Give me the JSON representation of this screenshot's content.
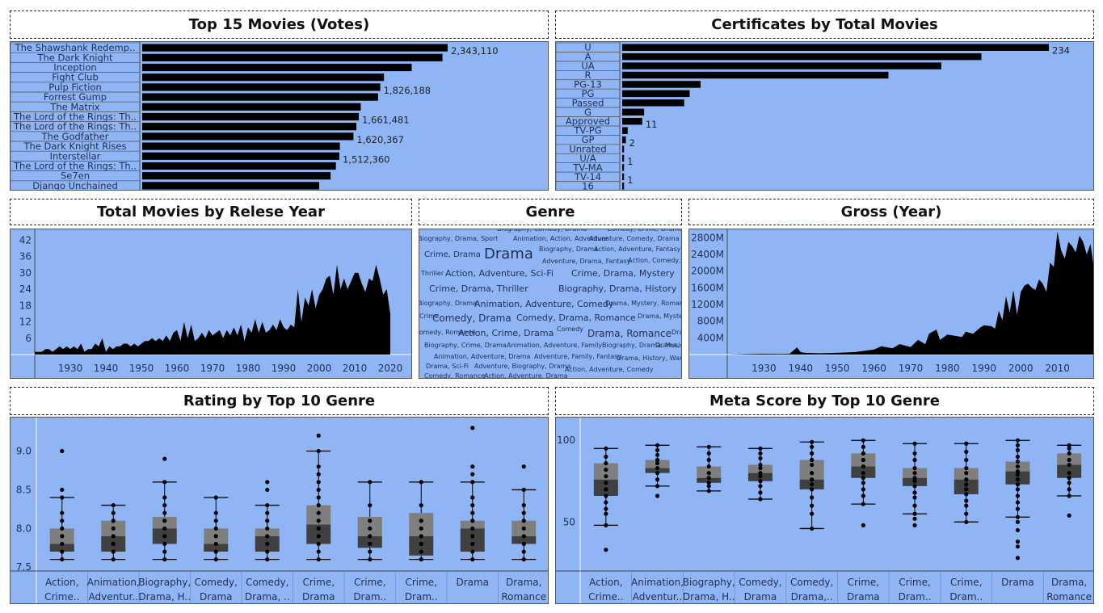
{
  "titles": {
    "top15": "Top 15 Movies (Votes)",
    "certs": "Certificates by Total Movies",
    "year": "Total Movies by Relese Year",
    "genre": "Genre",
    "gross": "Gross (Year)",
    "rating": "Rating by Top 10 Genre",
    "meta": "Meta Score by Top 10 Genre"
  },
  "chart_data": [
    {
      "id": "top15",
      "type": "bar",
      "orientation": "horizontal",
      "categories": [
        "The Shawshank Redemp..",
        "The Dark Knight",
        "Inception",
        "Fight Club",
        "Pulp Fiction",
        "Forrest Gump",
        "The Matrix",
        "The Lord of the Rings: Th..",
        "The Lord of the Rings: Th..",
        "The Godfather",
        "The Dark Knight Rises",
        "Interstellar",
        "The Lord of the Rings: Th..",
        "Se7en",
        "Django Unchained"
      ],
      "values": [
        2343110,
        2303232,
        2067042,
        1854740,
        1826188,
        1809221,
        1676426,
        1661481,
        1642758,
        1620367,
        1516346,
        1512360,
        1485555,
        1445096,
        1357682
      ],
      "data_labels": {
        "0": "2,343,110",
        "4": "1,826,188",
        "7": "1,661,481",
        "9": "1,620,367",
        "11": "1,512,360"
      }
    },
    {
      "id": "certs",
      "type": "bar",
      "orientation": "horizontal",
      "categories": [
        "U",
        "A",
        "UA",
        "R",
        "PG-13",
        "PG",
        "Passed",
        "G",
        "Approved",
        "TV-PG",
        "GP",
        "Unrated",
        "U/A",
        "TV-MA",
        "TV-14",
        "16"
      ],
      "values": [
        234,
        197,
        175,
        146,
        43,
        37,
        34,
        12,
        11,
        3,
        2,
        1,
        1,
        1,
        1,
        1
      ],
      "data_labels": {
        "0": "234",
        "8": "11",
        "10": "2",
        "12": "1",
        "14": "1"
      }
    },
    {
      "id": "year",
      "type": "area",
      "x": [
        1920,
        1921,
        1922,
        1923,
        1924,
        1925,
        1926,
        1927,
        1928,
        1929,
        1930,
        1931,
        1932,
        1933,
        1934,
        1935,
        1936,
        1937,
        1938,
        1939,
        1940,
        1941,
        1942,
        1943,
        1944,
        1945,
        1946,
        1947,
        1948,
        1949,
        1950,
        1951,
        1952,
        1953,
        1954,
        1955,
        1956,
        1957,
        1958,
        1959,
        1960,
        1961,
        1962,
        1963,
        1964,
        1965,
        1966,
        1967,
        1968,
        1969,
        1970,
        1971,
        1972,
        1973,
        1974,
        1975,
        1976,
        1977,
        1978,
        1979,
        1980,
        1981,
        1982,
        1983,
        1984,
        1985,
        1986,
        1987,
        1988,
        1989,
        1990,
        1991,
        1992,
        1993,
        1994,
        1995,
        1996,
        1997,
        1998,
        1999,
        2000,
        2001,
        2002,
        2003,
        2004,
        2005,
        2006,
        2007,
        2008,
        2009,
        2010,
        2011,
        2012,
        2013,
        2014,
        2015,
        2016,
        2017,
        2018,
        2019,
        2020
      ],
      "values": [
        1,
        1,
        1,
        2,
        2,
        1,
        2,
        3,
        2,
        3,
        2,
        3,
        2,
        4,
        1,
        2,
        2,
        4,
        3,
        6,
        1,
        3,
        2,
        3,
        3,
        4,
        4,
        3,
        4,
        3,
        4,
        5,
        5,
        6,
        5,
        6,
        5,
        7,
        5,
        8,
        9,
        5,
        12,
        6,
        11,
        5,
        6,
        8,
        6,
        9,
        7,
        8,
        9,
        6,
        9,
        7,
        10,
        7,
        11,
        5,
        10,
        8,
        13,
        8,
        12,
        8,
        9,
        11,
        9,
        13,
        10,
        9,
        11,
        10,
        24,
        12,
        21,
        18,
        24,
        17,
        22,
        24,
        28,
        29,
        22,
        33,
        24,
        28,
        24,
        27,
        30,
        30,
        26,
        23,
        28,
        27,
        33,
        28,
        22,
        24,
        15
      ],
      "xlim": [
        1920,
        2025
      ],
      "ylim": [
        0,
        46
      ],
      "yticks": [
        6,
        12,
        18,
        24,
        30,
        36,
        42
      ],
      "xticks": [
        1930,
        1940,
        1950,
        1960,
        1970,
        1980,
        1990,
        2000,
        2010,
        2020
      ]
    },
    {
      "id": "gross",
      "type": "area",
      "x": [
        1920,
        1925,
        1930,
        1935,
        1937,
        1939,
        1940,
        1941,
        1945,
        1950,
        1955,
        1960,
        1962,
        1965,
        1967,
        1970,
        1972,
        1974,
        1975,
        1977,
        1978,
        1980,
        1982,
        1984,
        1985,
        1987,
        1989,
        1990,
        1992,
        1993,
        1994,
        1995,
        1996,
        1997,
        1998,
        1999,
        2000,
        2001,
        2002,
        2003,
        2004,
        2005,
        2006,
        2007,
        2008,
        2009,
        2010,
        2011,
        2012,
        2013,
        2014,
        2015,
        2016,
        2017,
        2018,
        2019,
        2020
      ],
      "values": [
        0,
        10,
        20,
        15,
        20,
        170,
        60,
        40,
        30,
        40,
        60,
        120,
        200,
        150,
        250,
        180,
        350,
        250,
        500,
        600,
        350,
        480,
        450,
        420,
        550,
        500,
        650,
        700,
        680,
        620,
        1050,
        820,
        1400,
        1000,
        1550,
        950,
        1500,
        1650,
        1700,
        1600,
        1550,
        1800,
        1700,
        1500,
        2200,
        2100,
        2950,
        2500,
        2300,
        2700,
        2600,
        2450,
        2850,
        2700,
        2400,
        2650,
        2050
      ],
      "xlim": [
        1920,
        2020
      ],
      "ylim": [
        0,
        3000
      ],
      "yticks": [
        400,
        800,
        1200,
        1600,
        2000,
        2400,
        2800
      ],
      "ytick_labels": [
        "400M",
        "800M",
        "1200M",
        "1600M",
        "2000M",
        "2400M",
        "2800M"
      ],
      "xticks": [
        1930,
        1940,
        1950,
        1960,
        1970,
        1980,
        1990,
        2000,
        2010
      ]
    },
    {
      "id": "rating",
      "type": "box",
      "categories": [
        [
          "Action,",
          "Crime.."
        ],
        [
          "Animation,",
          "Adventur.."
        ],
        [
          "Biography,",
          "Drama, H.."
        ],
        [
          "Comedy,",
          "Drama"
        ],
        [
          "Comedy,",
          "Drama, .."
        ],
        [
          "Crime,",
          "Drama"
        ],
        [
          "Crime,",
          "Dram.."
        ],
        [
          "Crime,",
          "Dram.."
        ],
        [
          "Drama",
          ""
        ],
        [
          "Drama,",
          "Romance"
        ]
      ],
      "ylim": [
        7.45,
        9.35
      ],
      "yticks": [
        7.5,
        8.0,
        8.5,
        9.0
      ],
      "ytick_labels": [
        "7.5",
        "8.0",
        "8.5",
        "9.0"
      ],
      "boxes": [
        {
          "wmin": 7.6,
          "q1": 7.7,
          "med": 7.8,
          "q3": 8.0,
          "wmax": 8.4,
          "points": [
            7.6,
            7.7,
            7.8,
            7.9,
            8.0,
            8.1,
            8.2,
            8.4,
            8.5,
            9.0
          ]
        },
        {
          "wmin": 7.6,
          "q1": 7.7,
          "med": 7.9,
          "q3": 8.1,
          "wmax": 8.3,
          "points": [
            7.6,
            7.7,
            7.8,
            7.9,
            8.0,
            8.1,
            8.2,
            8.3
          ]
        },
        {
          "wmin": 7.6,
          "q1": 7.8,
          "med": 8.0,
          "q3": 8.15,
          "wmax": 8.6,
          "points": [
            7.6,
            7.7,
            7.8,
            7.9,
            8.0,
            8.1,
            8.2,
            8.3,
            8.4,
            8.6,
            8.9
          ]
        },
        {
          "wmin": 7.6,
          "q1": 7.7,
          "med": 7.8,
          "q3": 8.0,
          "wmax": 8.4,
          "points": [
            7.6,
            7.7,
            7.8,
            7.9,
            8.0,
            8.1,
            8.2,
            8.4
          ]
        },
        {
          "wmin": 7.6,
          "q1": 7.7,
          "med": 7.9,
          "q3": 8.0,
          "wmax": 8.3,
          "points": [
            7.6,
            7.7,
            7.8,
            7.9,
            8.0,
            8.1,
            8.2,
            8.3,
            8.5,
            8.6
          ]
        },
        {
          "wmin": 7.6,
          "q1": 7.8,
          "med": 8.05,
          "q3": 8.3,
          "wmax": 9.0,
          "points": [
            7.6,
            7.7,
            7.8,
            7.9,
            8.0,
            8.1,
            8.2,
            8.3,
            8.4,
            8.5,
            8.6,
            8.7,
            8.8,
            9.0,
            9.2
          ]
        },
        {
          "wmin": 7.6,
          "q1": 7.75,
          "med": 7.9,
          "q3": 8.15,
          "wmax": 8.6,
          "points": [
            7.6,
            7.7,
            7.8,
            7.9,
            8.0,
            8.1,
            8.3,
            8.6
          ]
        },
        {
          "wmin": 7.6,
          "q1": 7.65,
          "med": 7.9,
          "q3": 8.2,
          "wmax": 8.6,
          "points": [
            7.6,
            7.7,
            7.8,
            7.9,
            8.0,
            8.1,
            8.3,
            8.6
          ]
        },
        {
          "wmin": 7.6,
          "q1": 7.7,
          "med": 8.0,
          "q3": 8.1,
          "wmax": 8.6,
          "points": [
            7.6,
            7.7,
            7.8,
            7.9,
            8.0,
            8.1,
            8.2,
            8.3,
            8.4,
            8.6,
            8.7,
            8.8,
            9.3
          ]
        },
        {
          "wmin": 7.6,
          "q1": 7.8,
          "med": 7.9,
          "q3": 8.1,
          "wmax": 8.5,
          "points": [
            7.6,
            7.7,
            7.8,
            7.9,
            8.0,
            8.1,
            8.2,
            8.3,
            8.5,
            8.8
          ]
        }
      ]
    },
    {
      "id": "meta",
      "type": "box",
      "categories": [
        [
          "Action,",
          "Crime.."
        ],
        [
          "Animation,",
          "Adventur.."
        ],
        [
          "Biography,",
          "Drama, H.."
        ],
        [
          "Comedy,",
          "Drama"
        ],
        [
          "Comedy,",
          "Drama,.."
        ],
        [
          "Crime,",
          "Drama"
        ],
        [
          "Crime,",
          "Dram.."
        ],
        [
          "Crime,",
          "Dram.."
        ],
        [
          "Drama",
          ""
        ],
        [
          "Drama,",
          "Romance"
        ]
      ],
      "ylim": [
        20,
        110
      ],
      "yticks": [
        50,
        100
      ],
      "ytick_labels": [
        "50",
        "100"
      ],
      "boxes": [
        {
          "wmin": 48,
          "q1": 66,
          "med": 76,
          "q3": 86,
          "wmax": 95,
          "points": [
            33,
            48,
            55,
            58,
            62,
            66,
            70,
            74,
            78,
            82,
            86,
            90,
            95
          ]
        },
        {
          "wmin": 72,
          "q1": 80,
          "med": 83,
          "q3": 88,
          "wmax": 97,
          "points": [
            66,
            72,
            76,
            80,
            83,
            86,
            88,
            91,
            94,
            97
          ]
        },
        {
          "wmin": 69,
          "q1": 74,
          "med": 77,
          "q3": 84,
          "wmax": 96,
          "points": [
            69,
            72,
            74,
            77,
            80,
            84,
            88,
            92,
            96
          ]
        },
        {
          "wmin": 64,
          "q1": 75,
          "med": 80,
          "q3": 85,
          "wmax": 95,
          "points": [
            64,
            68,
            72,
            75,
            78,
            80,
            83,
            85,
            89,
            92,
            95
          ]
        },
        {
          "wmin": 46,
          "q1": 70,
          "med": 76,
          "q3": 88,
          "wmax": 99,
          "points": [
            46,
            55,
            60,
            65,
            70,
            73,
            76,
            80,
            85,
            88,
            92,
            96,
            99
          ]
        },
        {
          "wmin": 61,
          "q1": 77,
          "med": 84,
          "q3": 92,
          "wmax": 100,
          "points": [
            48,
            61,
            66,
            70,
            74,
            77,
            80,
            84,
            88,
            92,
            96,
            100
          ]
        },
        {
          "wmin": 55,
          "q1": 72,
          "med": 77,
          "q3": 83,
          "wmax": 98,
          "points": [
            48,
            52,
            55,
            60,
            65,
            68,
            72,
            75,
            77,
            80,
            83,
            88,
            92,
            98
          ]
        },
        {
          "wmin": 50,
          "q1": 67,
          "med": 76,
          "q3": 83,
          "wmax": 98,
          "points": [
            50,
            55,
            60,
            63,
            67,
            70,
            73,
            76,
            80,
            83,
            88,
            93,
            98
          ]
        },
        {
          "wmin": 53,
          "q1": 73,
          "med": 81,
          "q3": 87,
          "wmax": 100,
          "points": [
            28,
            35,
            38,
            45,
            50,
            53,
            58,
            62,
            66,
            70,
            73,
            76,
            79,
            81,
            84,
            87,
            90,
            94,
            97,
            100
          ]
        },
        {
          "wmin": 66,
          "q1": 77,
          "med": 85,
          "q3": 92,
          "wmax": 97,
          "points": [
            54,
            66,
            70,
            74,
            77,
            80,
            85,
            88,
            92,
            95,
            97
          ]
        }
      ]
    }
  ],
  "genre_cloud": [
    {
      "text": "Biography, Comedy, Drama",
      "size": 8
    },
    {
      "text": "Comedy, Crime, Drama",
      "size": 8
    },
    {
      "text": "Biography, Drama, Sport",
      "size": 8
    },
    {
      "text": "Animation, Action, Adventure",
      "size": 8
    },
    {
      "text": "Adventure, Comedy, Drama",
      "size": 8
    },
    {
      "text": "Crime, Drama",
      "size": 10
    },
    {
      "text": "Drama",
      "size": 18
    },
    {
      "text": "Biography, Drama",
      "size": 8
    },
    {
      "text": "Action, Adventure, Fantasy",
      "size": 8
    },
    {
      "text": "Adventure, Drama, Fantasy",
      "size": 8
    },
    {
      "text": "Action, Comedy, Crime",
      "size": 8
    },
    {
      "text": "Thriller",
      "size": 8
    },
    {
      "text": "Action, Adventure, Sci-Fi",
      "size": 11
    },
    {
      "text": "Crime, Drama, Mystery",
      "size": 11
    },
    {
      "text": "Crime, Drama, Thriller",
      "size": 11
    },
    {
      "text": "Biography, Drama, History",
      "size": 11
    },
    {
      "text": "Biography, Drama",
      "size": 8
    },
    {
      "text": "Animation, Adventure, Comedy",
      "size": 11
    },
    {
      "text": "Drama, Mystery, Romance",
      "size": 8
    },
    {
      "text": "Crime",
      "size": 8
    },
    {
      "text": "Comedy, Drama",
      "size": 12
    },
    {
      "text": "Comedy, Drama, Romance",
      "size": 11
    },
    {
      "text": "Drama, Mystery",
      "size": 8
    },
    {
      "text": "Comedy, Romance",
      "size": 8
    },
    {
      "text": "Action, Crime, Drama",
      "size": 11
    },
    {
      "text": "Comedy",
      "size": 8
    },
    {
      "text": "Drama, Romance",
      "size": 12
    },
    {
      "text": "Drama",
      "size": 8
    },
    {
      "text": "Biography, Crime, Drama",
      "size": 8
    },
    {
      "text": "Animation, Adventure, Family",
      "size": 8
    },
    {
      "text": "Biography, Drama, Music",
      "size": 8
    },
    {
      "text": "Drama, Music",
      "size": 8
    },
    {
      "text": "Animation, Adventure, Drama",
      "size": 8
    },
    {
      "text": "Adventure, Family, Fantasy",
      "size": 8
    },
    {
      "text": "Drama, History, War",
      "size": 8
    },
    {
      "text": "Drama, Sci-Fi",
      "size": 8
    },
    {
      "text": "Adventure, Biography, Drama",
      "size": 8
    },
    {
      "text": "Action, Adventure, Comedy",
      "size": 8
    },
    {
      "text": "Comedy, Romance",
      "size": 8
    },
    {
      "text": "Action, Adventure, Drama",
      "size": 8
    }
  ],
  "colors": {
    "panel_bg": "#8fb5f5",
    "mark": "#000000",
    "box_upper": "#7f7f7f",
    "box_lower": "#404040",
    "label": "#1f2f55"
  }
}
